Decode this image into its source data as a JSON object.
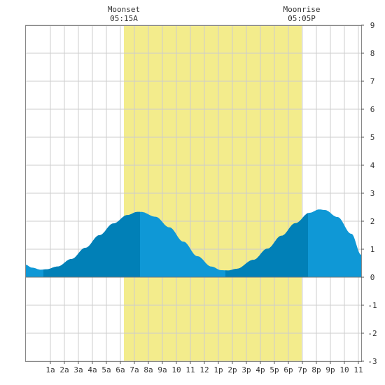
{
  "chart_data": {
    "type": "area",
    "title": "",
    "xlabel": "",
    "ylabel": "",
    "x_unit": "hour of day",
    "xlim": [
      -0.8,
      23.2
    ],
    "ylim": [
      -3,
      9
    ],
    "grid": true,
    "x_ticks": [
      {
        "x": 1,
        "label": "1a"
      },
      {
        "x": 2,
        "label": "2a"
      },
      {
        "x": 3,
        "label": "3a"
      },
      {
        "x": 4,
        "label": "4a"
      },
      {
        "x": 5,
        "label": "5a"
      },
      {
        "x": 6,
        "label": "6a"
      },
      {
        "x": 7,
        "label": "7a"
      },
      {
        "x": 8,
        "label": "8a"
      },
      {
        "x": 9,
        "label": "9a"
      },
      {
        "x": 10,
        "label": "10"
      },
      {
        "x": 11,
        "label": "11"
      },
      {
        "x": 12,
        "label": "12"
      },
      {
        "x": 13,
        "label": "1p"
      },
      {
        "x": 14,
        "label": "2p"
      },
      {
        "x": 15,
        "label": "3p"
      },
      {
        "x": 16,
        "label": "4p"
      },
      {
        "x": 17,
        "label": "5p"
      },
      {
        "x": 18,
        "label": "6p"
      },
      {
        "x": 19,
        "label": "7p"
      },
      {
        "x": 20,
        "label": "8p"
      },
      {
        "x": 21,
        "label": "9p"
      },
      {
        "x": 22,
        "label": "10"
      },
      {
        "x": 23,
        "label": "11"
      }
    ],
    "y_ticks": [
      -3,
      -2,
      -1,
      0,
      1,
      2,
      3,
      4,
      5,
      6,
      7,
      8,
      9
    ],
    "tide_curve": [
      {
        "x": -0.8,
        "y": 0.45
      },
      {
        "x": -0.3,
        "y": 0.34
      },
      {
        "x": 0.3,
        "y": 0.27
      },
      {
        "x": 0.7,
        "y": 0.28
      },
      {
        "x": 1.5,
        "y": 0.38
      },
      {
        "x": 2.5,
        "y": 0.65
      },
      {
        "x": 3.5,
        "y": 1.05
      },
      {
        "x": 4.5,
        "y": 1.5
      },
      {
        "x": 5.5,
        "y": 1.92
      },
      {
        "x": 6.5,
        "y": 2.22
      },
      {
        "x": 7.2,
        "y": 2.33
      },
      {
        "x": 7.5,
        "y": 2.33
      },
      {
        "x": 8.5,
        "y": 2.16
      },
      {
        "x": 9.5,
        "y": 1.78
      },
      {
        "x": 10.5,
        "y": 1.27
      },
      {
        "x": 11.5,
        "y": 0.75
      },
      {
        "x": 12.5,
        "y": 0.38
      },
      {
        "x": 13.2,
        "y": 0.25
      },
      {
        "x": 13.7,
        "y": 0.24
      },
      {
        "x": 14.3,
        "y": 0.3
      },
      {
        "x": 15.5,
        "y": 0.62
      },
      {
        "x": 16.5,
        "y": 1.02
      },
      {
        "x": 17.5,
        "y": 1.48
      },
      {
        "x": 18.5,
        "y": 1.93
      },
      {
        "x": 19.5,
        "y": 2.3
      },
      {
        "x": 20.2,
        "y": 2.42
      },
      {
        "x": 20.6,
        "y": 2.4
      },
      {
        "x": 21.5,
        "y": 2.15
      },
      {
        "x": 22.5,
        "y": 1.55
      },
      {
        "x": 23.2,
        "y": 0.8
      }
    ],
    "dark_bands": [
      {
        "from": 0.5,
        "to": 7.4
      },
      {
        "from": 13.5,
        "to": 19.4
      }
    ],
    "daylight": {
      "from": 6.25,
      "to": 18.95
    },
    "moon_events": [
      {
        "name": "Moonset",
        "time": "05:15A",
        "x": 6.25
      },
      {
        "name": "Moonrise",
        "time": "05:05P",
        "x": 18.95
      }
    ],
    "colors": {
      "daylight": "#f3ec8c",
      "tide_light": "#0f98d6",
      "tide_dark": "#0180b7",
      "grid": "#cccccc",
      "border": "#888888"
    }
  }
}
